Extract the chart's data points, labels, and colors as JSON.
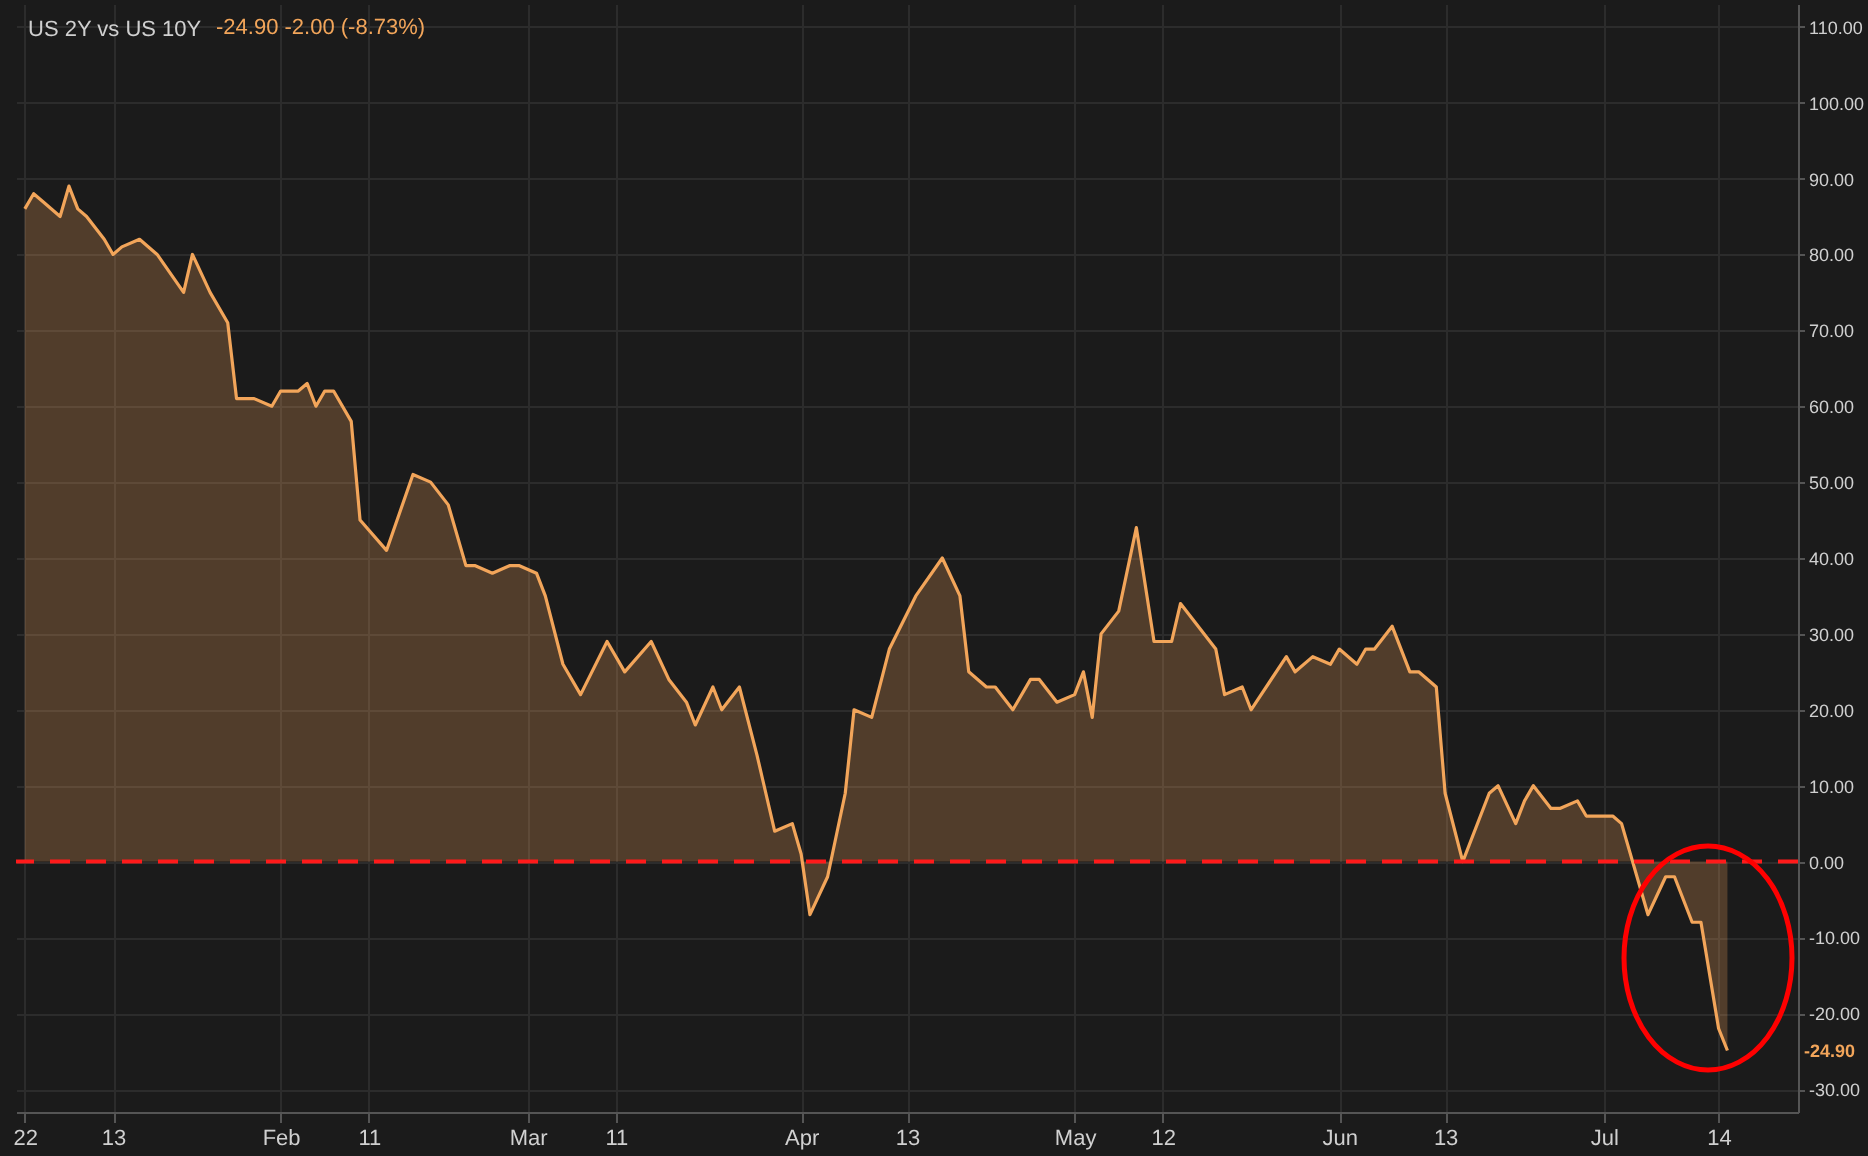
{
  "chart_data": {
    "type": "area",
    "title": "US 2Y vs US 10Y",
    "annotations": [
      "-24.90 -2.00 (-8.73%)",
      "-24.90"
    ],
    "x": [
      "--01-03",
      "--01-04",
      "--01-05",
      "--01-07",
      "--01-08",
      "--01-09",
      "--01-10",
      "--01-12",
      "--01-13",
      "--01-14",
      "--01-16",
      "--01-18",
      "--01-21",
      "--01-22",
      "--01-24",
      "--01-26",
      "--01-27",
      "--01-29",
      "--01-31",
      "--02-01",
      "--02-03",
      "--02-04",
      "--02-05",
      "--02-06",
      "--02-07",
      "--02-09",
      "--02-10",
      "--02-13",
      "--02-16",
      "--02-18",
      "--02-20",
      "--02-22",
      "--02-23",
      "--02-25",
      "--02-27",
      "--02-28",
      "--03-02",
      "--03-03",
      "--03-05",
      "--03-07",
      "--03-10",
      "--03-12",
      "--03-15",
      "--03-17",
      "--03-19",
      "--03-20",
      "--03-22",
      "--03-23",
      "--03-25",
      "--03-27",
      "--03-29",
      "--03-31",
      "--04-01",
      "--04-02",
      "--04-04",
      "--04-06",
      "--04-07",
      "--04-09",
      "--04-11",
      "--04-14",
      "--04-17",
      "--04-19",
      "--04-20",
      "--04-22",
      "--04-23",
      "--04-25",
      "--04-27",
      "--04-28",
      "--04-30",
      "--05-02",
      "--05-03",
      "--05-04",
      "--05-05",
      "--05-07",
      "--05-09",
      "--05-11",
      "--05-13",
      "--05-14",
      "--05-18",
      "--05-19",
      "--05-21",
      "--05-22",
      "--05-26",
      "--05-27",
      "--05-29",
      "--05-31",
      "--06-01",
      "--06-03",
      "--06-04",
      "--06-05",
      "--06-07",
      "--06-09",
      "--06-10",
      "--06-12",
      "--06-13",
      "--06-15",
      "--06-18",
      "--06-19",
      "--06-21",
      "--06-22",
      "--06-23",
      "--06-25",
      "--06-26",
      "--06-28",
      "--06-29",
      "--06-30",
      "--07-02",
      "--07-03",
      "--07-06",
      "--07-08",
      "--07-09",
      "--07-11",
      "--07-12",
      "--07-14",
      "--07-15"
    ],
    "series": [
      {
        "color": "#f2a55a",
        "values": [
          86,
          88,
          87,
          85,
          89,
          86,
          85,
          82,
          80,
          81,
          82,
          80,
          75,
          80,
          75,
          71,
          61,
          61,
          60,
          62,
          62,
          63,
          60,
          62,
          62,
          58,
          45,
          41,
          51,
          50,
          47,
          39,
          39,
          38,
          39,
          39,
          38,
          35,
          26,
          22,
          29,
          25,
          29,
          24,
          21,
          18,
          23,
          20,
          23,
          14,
          4,
          5,
          1,
          -7,
          -2,
          9,
          20,
          19,
          28,
          35,
          40,
          35,
          25,
          23,
          23,
          20,
          24,
          24,
          21,
          22,
          25,
          19,
          30,
          33,
          44,
          29,
          29,
          34,
          28,
          22,
          23,
          20,
          27,
          25,
          27,
          26,
          28,
          26,
          28,
          28,
          31,
          25,
          25,
          23,
          9,
          0,
          9,
          10,
          5,
          8,
          10,
          7,
          7,
          8,
          6,
          6,
          6,
          5,
          -7,
          -2,
          -2,
          -8,
          -8,
          -22,
          -24.9
        ]
      }
    ],
    "xlim": [
      "--01-02",
      "--07-23"
    ],
    "xticks": [
      {
        "value": "--01-03",
        "label": "22"
      },
      {
        "value": "--01-13",
        "label": "13"
      },
      {
        "value": "--02-01",
        "label": "Feb"
      },
      {
        "value": "--02-11",
        "label": "11"
      },
      {
        "value": "--03-01",
        "label": "Mar"
      },
      {
        "value": "--03-11",
        "label": "11"
      },
      {
        "value": "--04-01",
        "label": "Apr"
      },
      {
        "value": "--04-13",
        "label": "13"
      },
      {
        "value": "--05-02",
        "label": "May"
      },
      {
        "value": "--05-12",
        "label": "12"
      },
      {
        "value": "--06-01",
        "label": "Jun"
      },
      {
        "value": "--06-13",
        "label": "13"
      },
      {
        "value": "--07-01",
        "label": "Jul"
      },
      {
        "value": "--07-14",
        "label": "14"
      }
    ],
    "ylim": [
      -33,
      113
    ],
    "yticks": [
      {
        "value": -30,
        "label": "-30.00"
      },
      {
        "value": -20,
        "label": "-20.00"
      },
      {
        "value": -10,
        "label": "-10.00"
      },
      {
        "value": 0,
        "label": "0.00"
      },
      {
        "value": 10,
        "label": "10.00"
      },
      {
        "value": 20,
        "label": "20.00"
      },
      {
        "value": 30,
        "label": "30.00"
      },
      {
        "value": 40,
        "label": "40.00"
      },
      {
        "value": 50,
        "label": "50.00"
      },
      {
        "value": 60,
        "label": "60.00"
      },
      {
        "value": 70,
        "label": "70.00"
      },
      {
        "value": 80,
        "label": "80.00"
      },
      {
        "value": 90,
        "label": "90.00"
      },
      {
        "value": 100,
        "label": "100.00"
      },
      {
        "value": 110,
        "label": "110.00"
      }
    ],
    "ref_lines": [
      {
        "axis": "y",
        "value": 0,
        "color": "#ff1a1a",
        "line_style": "dashed"
      }
    ],
    "grid": true
  }
}
